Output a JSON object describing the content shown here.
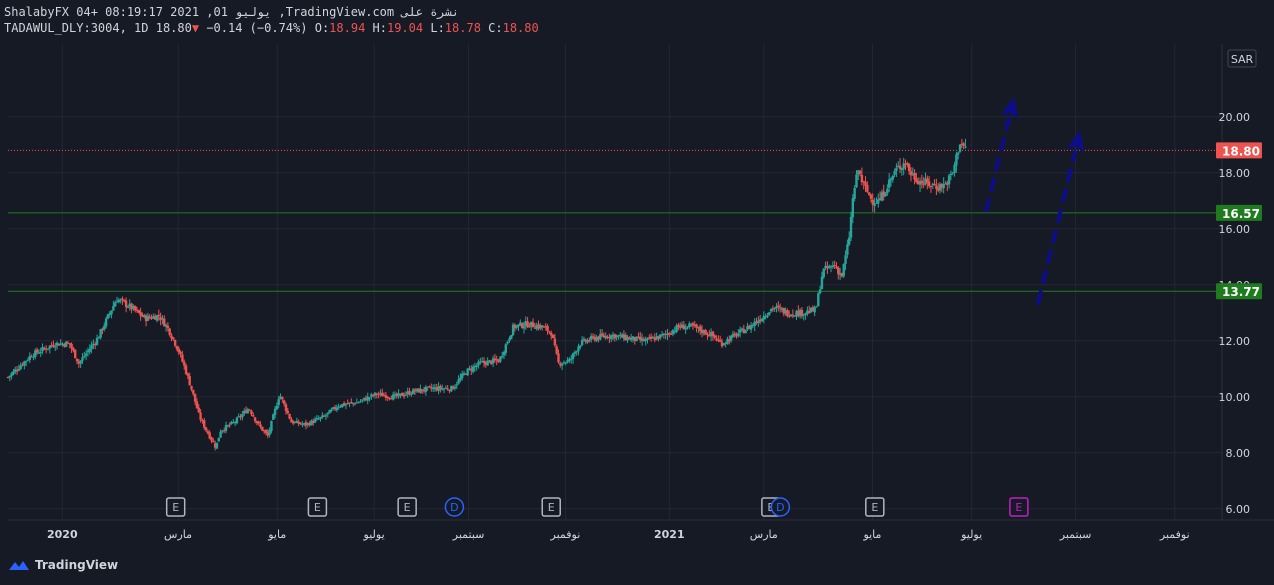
{
  "header": {
    "line1": "ShalabyFX 04+ 08:19:17 2021 ,01 يوليو ,TradingView.com نشرة على",
    "symbol": "TADAWUL_DLY:3004, 1D",
    "last": "18.80",
    "change": "−0.14 (−0.74%)",
    "o_label": "O:",
    "o_value": "18.94",
    "h_label": "H:",
    "h_value": "19.04",
    "l_label": "L:",
    "l_value": "18.78",
    "c_label": "C:",
    "c_value": "18.80",
    "down_glyph": "▼"
  },
  "watermark": "TradingView",
  "colors": {
    "up": "#26a69a",
    "down": "#ef5350",
    "price_line": "#ef5350",
    "support": "#1e7b1e",
    "arrow": "#0d0d8c",
    "earnings": "#b2b5be",
    "dividend": "#2962ff",
    "upcoming": "#c21ec7"
  },
  "chart_data": {
    "type": "candlestick",
    "currency": "SAR",
    "y_ticks": [
      "6.00",
      "8.00",
      "10.00",
      "12.00",
      "14.00",
      "16.00",
      "18.00",
      "20.00"
    ],
    "ylim": [
      5.6,
      22.6
    ],
    "x_ticks": [
      {
        "label": "2020",
        "t": 0.115,
        "bold": true
      },
      {
        "label": "مارس",
        "t": 0.36
      },
      {
        "label": "مايو",
        "t": 0.57
      },
      {
        "label": "يوليو",
        "t": 0.775
      },
      {
        "label": "سبتمبر",
        "t": 0.975
      },
      {
        "label": "نوفمبر",
        "t": 1.18
      },
      {
        "label": "2021",
        "t": 1.4,
        "bold": true
      },
      {
        "label": "مارس",
        "t": 1.6
      },
      {
        "label": "مايو",
        "t": 1.83
      },
      {
        "label": "يوليو",
        "t": 2.04
      },
      {
        "label": "سبتمبر",
        "t": 2.26
      },
      {
        "label": "نوفمبر",
        "t": 2.47
      }
    ],
    "xlim": [
      0,
      2.57
    ],
    "last_price": {
      "value": 18.8,
      "label": "18.80"
    },
    "support_lines": [
      {
        "value": 16.57,
        "label": "16.57"
      },
      {
        "value": 13.77,
        "label": "13.77"
      }
    ],
    "path": [
      [
        0,
        10.7
      ],
      [
        0.05,
        11.5
      ],
      [
        0.1,
        11.9
      ],
      [
        0.13,
        11.9
      ],
      [
        0.15,
        11.2
      ],
      [
        0.19,
        12.1
      ],
      [
        0.23,
        13.5
      ],
      [
        0.26,
        13.2
      ],
      [
        0.29,
        12.8
      ],
      [
        0.32,
        12.9
      ],
      [
        0.34,
        12.4
      ],
      [
        0.36,
        11.7
      ],
      [
        0.375,
        11.0
      ],
      [
        0.39,
        10.2
      ],
      [
        0.405,
        9.3
      ],
      [
        0.42,
        8.8
      ],
      [
        0.44,
        8.2
      ],
      [
        0.45,
        8.8
      ],
      [
        0.48,
        9.1
      ],
      [
        0.51,
        9.6
      ],
      [
        0.53,
        9.0
      ],
      [
        0.55,
        8.6
      ],
      [
        0.575,
        10.1
      ],
      [
        0.6,
        9.1
      ],
      [
        0.63,
        9.0
      ],
      [
        0.67,
        9.3
      ],
      [
        0.7,
        9.7
      ],
      [
        0.74,
        9.8
      ],
      [
        0.78,
        10.1
      ],
      [
        0.82,
        10.0
      ],
      [
        0.86,
        10.2
      ],
      [
        0.9,
        10.3
      ],
      [
        0.94,
        10.3
      ],
      [
        0.97,
        10.9
      ],
      [
        1.0,
        11.2
      ],
      [
        1.04,
        11.3
      ],
      [
        1.07,
        12.5
      ],
      [
        1.1,
        12.6
      ],
      [
        1.13,
        12.5
      ],
      [
        1.15,
        12.3
      ],
      [
        1.165,
        11.2
      ],
      [
        1.19,
        11.3
      ],
      [
        1.21,
        11.9
      ],
      [
        1.24,
        12.1
      ],
      [
        1.28,
        12.2
      ],
      [
        1.31,
        12.1
      ],
      [
        1.35,
        12.0
      ],
      [
        1.39,
        12.2
      ],
      [
        1.42,
        12.5
      ],
      [
        1.45,
        12.5
      ],
      [
        1.49,
        12.2
      ],
      [
        1.51,
        11.9
      ],
      [
        1.54,
        12.2
      ],
      [
        1.57,
        12.5
      ],
      [
        1.6,
        12.9
      ],
      [
        1.62,
        13.2
      ],
      [
        1.65,
        13.0
      ],
      [
        1.68,
        13.0
      ],
      [
        1.71,
        13.1
      ],
      [
        1.725,
        14.5
      ],
      [
        1.75,
        14.7
      ],
      [
        1.765,
        14.3
      ],
      [
        1.78,
        15.6
      ],
      [
        1.79,
        17.3
      ],
      [
        1.8,
        18.1
      ],
      [
        1.81,
        17.6
      ],
      [
        1.83,
        17.0
      ],
      [
        1.845,
        17.0
      ],
      [
        1.86,
        17.5
      ],
      [
        1.88,
        18.1
      ],
      [
        1.9,
        18.4
      ],
      [
        1.91,
        18.0
      ],
      [
        1.93,
        17.7
      ],
      [
        1.95,
        17.6
      ],
      [
        1.97,
        17.5
      ],
      [
        1.985,
        17.6
      ],
      [
        2.0,
        18.0
      ],
      [
        2.015,
        19.1
      ],
      [
        2.03,
        18.8
      ]
    ],
    "event_markers": [
      {
        "t": 0.355,
        "label": "E",
        "kind": "earnings"
      },
      {
        "t": 0.655,
        "label": "E",
        "kind": "earnings"
      },
      {
        "t": 0.845,
        "label": "E",
        "kind": "earnings"
      },
      {
        "t": 0.945,
        "label": "D",
        "kind": "dividend"
      },
      {
        "t": 1.15,
        "label": "E",
        "kind": "earnings"
      },
      {
        "t": 1.615,
        "label": "E",
        "kind": "earnings"
      },
      {
        "t": 1.635,
        "label": "D",
        "kind": "dividend"
      },
      {
        "t": 1.835,
        "label": "E",
        "kind": "earnings"
      },
      {
        "t": 2.14,
        "label": "E",
        "kind": "upcoming"
      }
    ],
    "arrows": [
      {
        "from": [
          2.07,
          16.6
        ],
        "to": [
          2.13,
          20.7
        ]
      },
      {
        "from": [
          2.18,
          13.3
        ],
        "to": [
          2.27,
          19.5
        ]
      }
    ]
  }
}
